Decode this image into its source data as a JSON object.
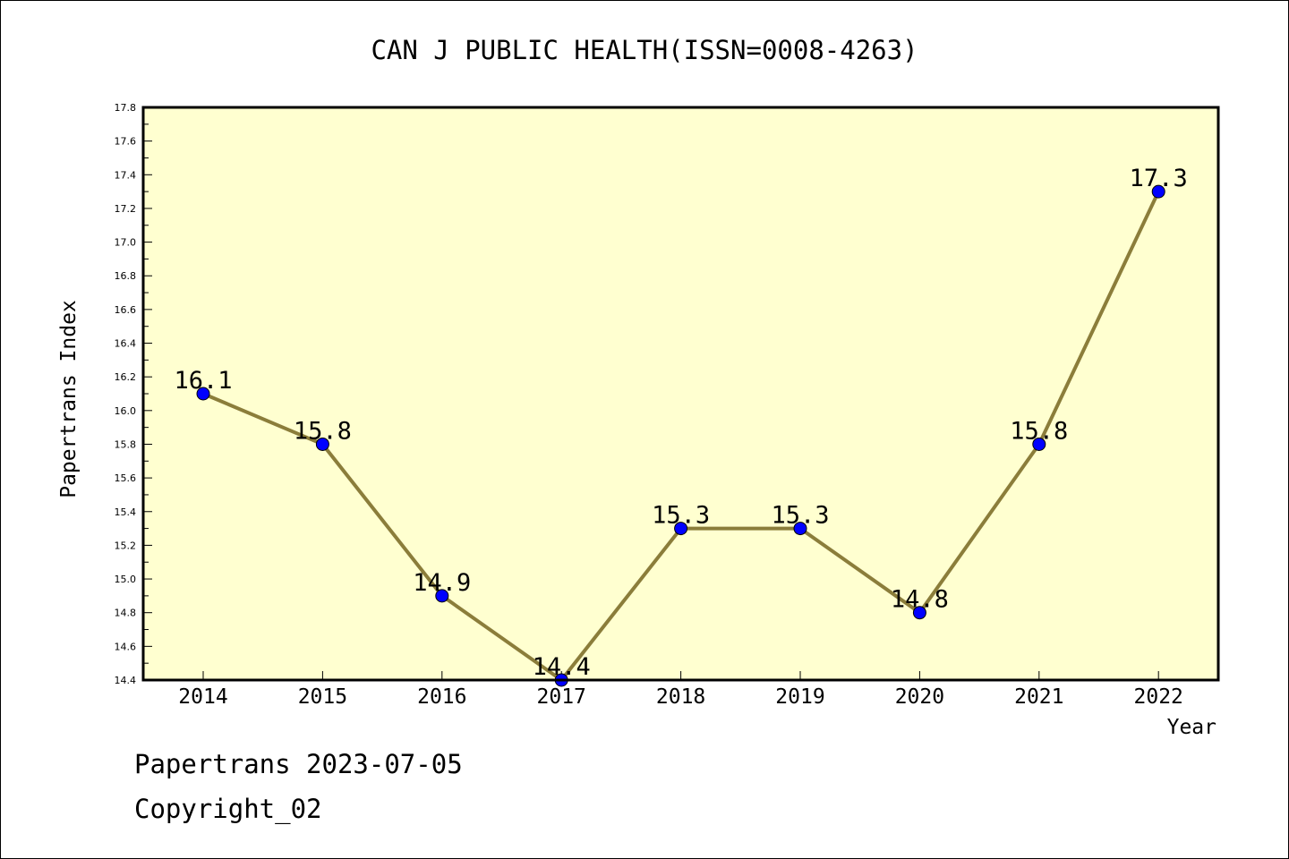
{
  "chart_data": {
    "type": "line",
    "title": "CAN J PUBLIC HEALTH(ISSN=0008-4263)",
    "xlabel": "Year",
    "ylabel": "Papertrans Index",
    "x": [
      "2014",
      "2015",
      "2016",
      "2017",
      "2018",
      "2019",
      "2020",
      "2021",
      "2022"
    ],
    "y_ticks": [
      "14.4",
      "14.6",
      "14.8",
      "15.0",
      "15.2",
      "15.4",
      "15.6",
      "15.8",
      "16.0",
      "16.2",
      "16.4",
      "16.6",
      "16.8",
      "17.0",
      "17.2",
      "17.4",
      "17.6",
      "17.8"
    ],
    "ylim": [
      14.4,
      17.8
    ],
    "series": [
      {
        "values": [
          16.1,
          15.8,
          14.9,
          14.4,
          15.3,
          15.3,
          14.8,
          15.8,
          17.3
        ],
        "labels": [
          "16.1",
          "15.8",
          "14.9",
          "14.4",
          "15.3",
          "15.3",
          "14.8",
          "15.8",
          "17.3"
        ]
      }
    ],
    "grid": false,
    "colors": {
      "plot_background": "#ffffd0",
      "line": "#8b7d3a",
      "marker": "#0000ff",
      "axis": "#000000"
    }
  },
  "footer": {
    "line1": "Papertrans 2023-07-05",
    "line2": "Copyright_02"
  }
}
